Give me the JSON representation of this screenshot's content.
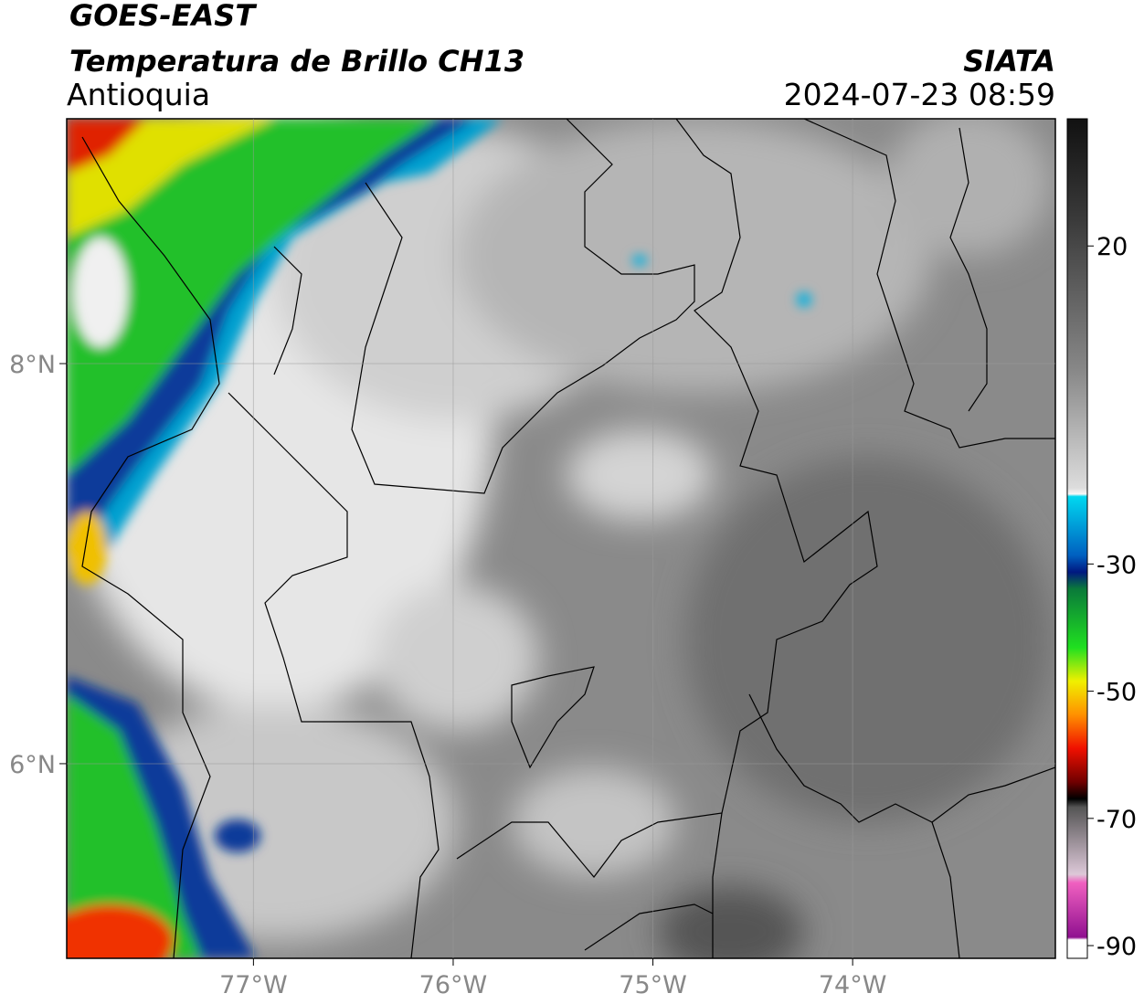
{
  "header": {
    "satellite": "GOES-EAST",
    "product": "Temperatura de Brillo CH13",
    "region": "Antioquia",
    "agency": "SIATA",
    "datetime": "2024-07-23 08:59"
  },
  "map": {
    "xlim": [
      -77.935,
      -72.985
    ],
    "ylim": [
      5.027,
      9.224
    ],
    "xticks": [
      {
        "value": -77,
        "label": "77°W"
      },
      {
        "value": -76,
        "label": "76°W"
      },
      {
        "value": -75,
        "label": "75°W"
      },
      {
        "value": -74,
        "label": "74°W"
      }
    ],
    "yticks": [
      {
        "value": 8,
        "label": "8°N"
      },
      {
        "value": 6,
        "label": "6°N"
      }
    ]
  },
  "colorbar": {
    "lim": [
      -92,
      40
    ],
    "ticks": [
      20,
      -30,
      -50,
      -70,
      -90
    ]
  }
}
